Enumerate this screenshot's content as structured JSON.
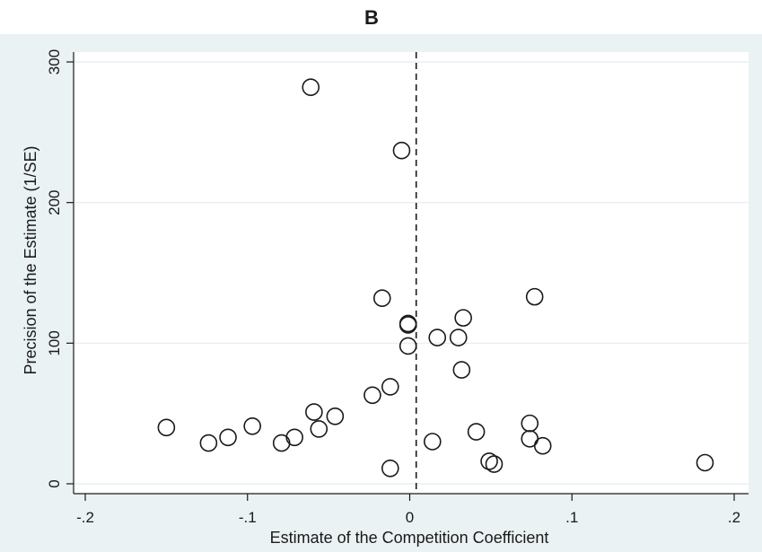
{
  "chart_data": {
    "type": "scatter",
    "title": "B",
    "xlabel": "Estimate of the Competition Coefficient",
    "ylabel": "Precision of the Estimate (1/SE)",
    "xlim": [
      -0.2,
      0.2
    ],
    "ylim": [
      0,
      300
    ],
    "x_ticks": [
      {
        "value": -0.2,
        "label": "-.2"
      },
      {
        "value": -0.1,
        "label": "-.1"
      },
      {
        "value": 0,
        "label": "0"
      },
      {
        "value": 0.1,
        "label": ".1"
      },
      {
        "value": 0.2,
        "label": ".2"
      }
    ],
    "y_ticks": [
      {
        "value": 0,
        "label": "0"
      },
      {
        "value": 100,
        "label": "100"
      },
      {
        "value": 200,
        "label": "200"
      },
      {
        "value": 300,
        "label": "300"
      }
    ],
    "reference_line": {
      "axis": "x",
      "value": 0.004,
      "style": "dashed"
    },
    "grid": {
      "horizontal": true,
      "vertical": false
    },
    "marker": "hollow-circle",
    "colors": {
      "plot_background": "#ffffff",
      "outer_background": "#eaf2f3",
      "marker": "#1a1a1a",
      "grid": "#e4ecee"
    },
    "series": [
      {
        "points": [
          {
            "x": -0.061,
            "y": 282
          },
          {
            "x": -0.005,
            "y": 237
          },
          {
            "x": -0.017,
            "y": 132
          },
          {
            "x": 0.077,
            "y": 133
          },
          {
            "x": 0.033,
            "y": 118
          },
          {
            "x": -0.001,
            "y": 114
          },
          {
            "x": -0.001,
            "y": 113
          },
          {
            "x": 0.017,
            "y": 104
          },
          {
            "x": 0.03,
            "y": 104
          },
          {
            "x": -0.001,
            "y": 98
          },
          {
            "x": 0.032,
            "y": 81
          },
          {
            "x": -0.012,
            "y": 69
          },
          {
            "x": -0.023,
            "y": 63
          },
          {
            "x": -0.059,
            "y": 51
          },
          {
            "x": -0.046,
            "y": 48
          },
          {
            "x": -0.15,
            "y": 40
          },
          {
            "x": -0.097,
            "y": 41
          },
          {
            "x": -0.056,
            "y": 39
          },
          {
            "x": 0.074,
            "y": 43
          },
          {
            "x": 0.041,
            "y": 37
          },
          {
            "x": -0.112,
            "y": 33
          },
          {
            "x": -0.071,
            "y": 33
          },
          {
            "x": 0.074,
            "y": 32
          },
          {
            "x": -0.124,
            "y": 29
          },
          {
            "x": -0.079,
            "y": 29
          },
          {
            "x": 0.014,
            "y": 30
          },
          {
            "x": 0.082,
            "y": 27
          },
          {
            "x": 0.049,
            "y": 16
          },
          {
            "x": 0.052,
            "y": 14
          },
          {
            "x": 0.182,
            "y": 15
          },
          {
            "x": -0.012,
            "y": 11
          }
        ]
      }
    ]
  }
}
